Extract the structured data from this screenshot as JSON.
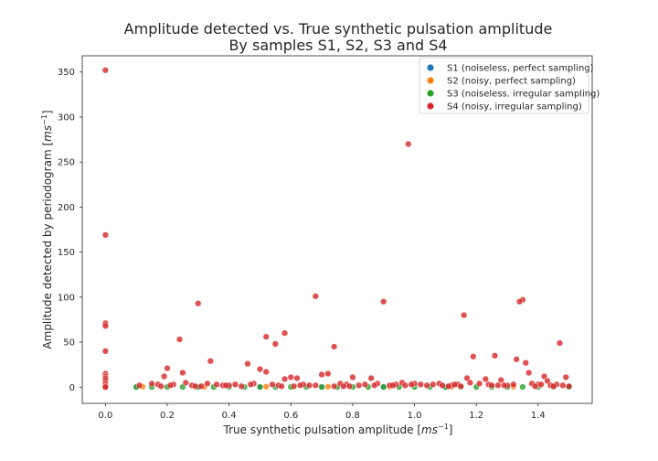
{
  "chart_data": {
    "type": "scatter",
    "title_line1": "Amplitude detected vs. True synthetic pulsation amplitude",
    "title_line2": "By samples S1, S2, S3 and S4",
    "xlabel_text": "True synthetic pulsation amplitude",
    "xlabel_unit_base": "ms",
    "xlabel_unit_exp": "−1",
    "ylabel_text": "Amplitude detected by periodogram",
    "ylabel_unit_base": "ms",
    "ylabel_unit_exp": "−1",
    "xlim": [
      -0.075,
      1.575
    ],
    "ylim": [
      -18,
      368
    ],
    "xticks": [
      0.0,
      0.2,
      0.4,
      0.6,
      0.8,
      1.0,
      1.2,
      1.4
    ],
    "xtick_labels": [
      "0.0",
      "0.2",
      "0.4",
      "0.6",
      "0.8",
      "1.0",
      "1.2",
      "1.4"
    ],
    "yticks": [
      0,
      50,
      100,
      150,
      200,
      250,
      300,
      350
    ],
    "ytick_labels": [
      "0",
      "50",
      "100",
      "150",
      "200",
      "250",
      "300",
      "350"
    ],
    "grid": false,
    "legend_position": "top-right",
    "series": [
      {
        "name": "S1 (noiseless, perfect sampling)",
        "color": "#1f77b4",
        "x": [
          0.1,
          0.3,
          0.5,
          0.7,
          0.9,
          1.1,
          1.3,
          1.5
        ],
        "y": [
          0.3,
          0.3,
          0.3,
          0.3,
          0.3,
          0.3,
          0.3,
          0.3
        ]
      },
      {
        "name": "S2 (noisy, perfect sampling)",
        "color": "#ff7f0e",
        "x": [
          0.12,
          0.32,
          0.52,
          0.72,
          0.92,
          1.12,
          1.32
        ],
        "y": [
          0.6,
          0.5,
          0.6,
          0.5,
          0.6,
          0.5,
          0.6
        ]
      },
      {
        "name": "S3 (noiseless. irregular sampling)",
        "color": "#2ca02c",
        "x": [
          0.1,
          0.15,
          0.2,
          0.25,
          0.3,
          0.35,
          0.4,
          0.45,
          0.5,
          0.55,
          0.6,
          0.65,
          0.7,
          0.75,
          0.8,
          0.85,
          0.9,
          0.95,
          1.0,
          1.05,
          1.1,
          1.15,
          1.2,
          1.25,
          1.3,
          1.35,
          1.4,
          1.45,
          1.5
        ],
        "y": [
          0.2,
          0.2,
          0.2,
          0.2,
          0.2,
          0.2,
          0.2,
          0.2,
          0.2,
          0.2,
          0.2,
          0.2,
          0.2,
          0.2,
          0.2,
          0.2,
          0.2,
          0.2,
          0.2,
          0.2,
          0.2,
          0.2,
          0.2,
          0.2,
          0.2,
          0.2,
          0.2,
          0.2,
          0.2
        ]
      },
      {
        "name": "S4 (noisy, irregular sampling)",
        "color": "#d62728",
        "x": [
          0.0,
          0.0,
          0.0,
          0.0,
          0.0,
          0.0,
          0.0,
          0.0,
          0.0,
          0.0,
          0.0,
          0.0,
          0.0,
          0.98,
          0.68,
          0.3,
          0.9,
          1.16,
          1.35,
          1.34,
          0.24,
          0.58,
          0.52,
          0.55,
          0.74,
          0.46,
          1.47,
          1.26,
          1.19,
          1.33,
          1.36,
          0.34,
          0.5,
          0.52,
          0.2,
          0.19,
          1.37,
          0.25,
          0.6,
          0.58,
          0.62,
          0.7,
          0.72,
          0.8,
          0.86,
          1.42,
          1.49,
          1.17,
          1.23,
          1.28,
          1.43,
          0.15,
          0.22,
          0.26,
          0.28,
          0.33,
          0.36,
          0.38,
          0.42,
          0.44,
          0.48,
          0.56,
          0.64,
          0.66,
          0.76,
          0.78,
          0.82,
          0.84,
          0.88,
          0.92,
          0.94,
          0.96,
          1.0,
          1.02,
          1.04,
          1.06,
          1.08,
          1.12,
          1.14,
          1.18,
          1.21,
          1.24,
          1.3,
          1.32,
          1.38,
          1.4,
          1.44,
          1.46,
          1.48,
          0.11,
          0.17,
          0.31,
          0.4,
          0.54,
          0.61,
          0.68,
          0.74,
          0.87,
          0.99,
          1.09,
          1.15,
          1.27,
          1.41,
          1.5,
          0.21,
          0.29,
          0.47,
          0.63,
          0.79,
          0.97,
          1.13,
          1.29,
          1.39,
          0.18,
          0.39,
          0.57,
          0.77,
          0.93,
          1.11,
          1.25,
          1.45
        ],
        "y": [
          352,
          169,
          71,
          68,
          40,
          15,
          12,
          10,
          8,
          5,
          3,
          1,
          0,
          270,
          101,
          93,
          95,
          80,
          97,
          95,
          53,
          60,
          56,
          48,
          45,
          26,
          49,
          35,
          34,
          31,
          27,
          29,
          20,
          17,
          21,
          12,
          16,
          16,
          11,
          9,
          10,
          14,
          15,
          11,
          10,
          12,
          11,
          10,
          9,
          8,
          7,
          4,
          3,
          5,
          2,
          4,
          3,
          2,
          3,
          1,
          4,
          2,
          3,
          2,
          4,
          3,
          2,
          3,
          4,
          2,
          3,
          5,
          4,
          3,
          2,
          3,
          4,
          2,
          3,
          5,
          4,
          3,
          2,
          3,
          4,
          3,
          2,
          3,
          2,
          2,
          3,
          1,
          2,
          3,
          1,
          2,
          1,
          2,
          3,
          2,
          1,
          2,
          3,
          1,
          2,
          1,
          3,
          2,
          1,
          2,
          3,
          2,
          1,
          1,
          2,
          1,
          1,
          2,
          1,
          2,
          1
        ]
      }
    ]
  }
}
